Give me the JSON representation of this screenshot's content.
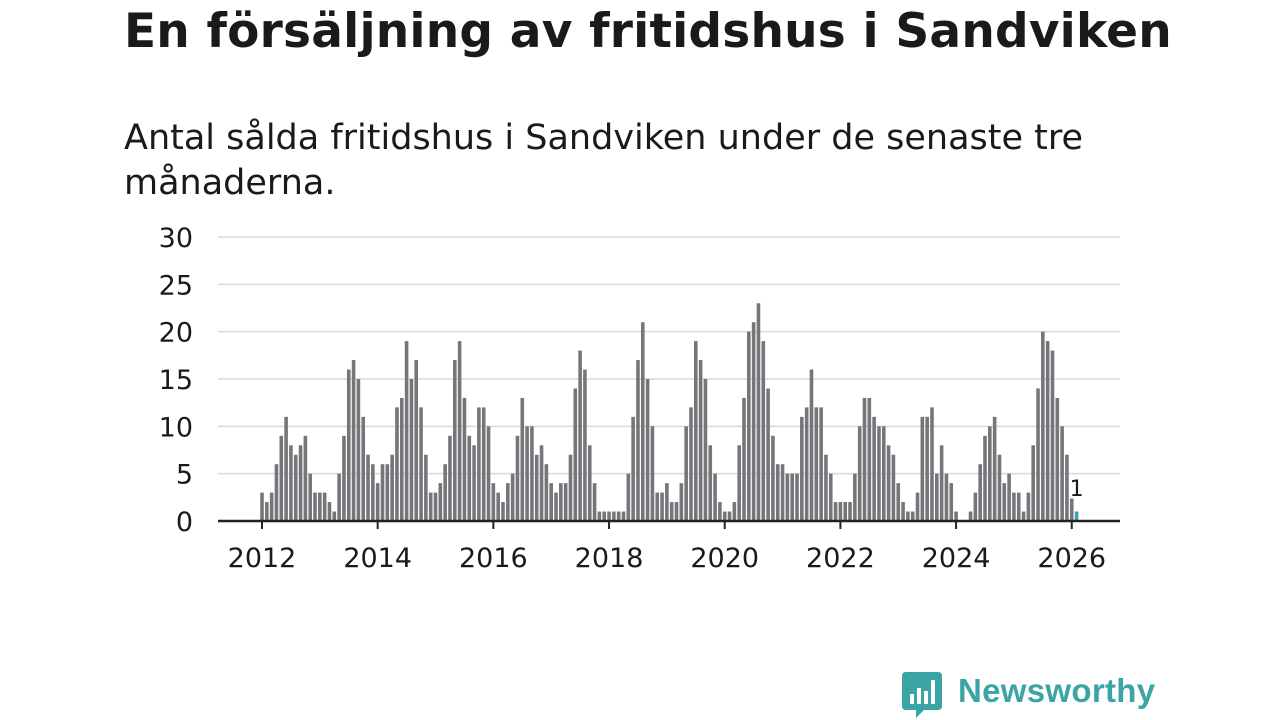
{
  "title": "En försäljning av fritidshus i Sandviken",
  "subtitle": "Antal sålda fritidshus i Sandviken under de senaste tre månaderna.",
  "brand": {
    "name": "Newsworthy",
    "icon": "newsworthy-logo-icon",
    "color": "#3aa5a4"
  },
  "colors": {
    "bar": "#76757a",
    "highlight": "#3aa5a4",
    "grid": "#d9d9d9",
    "axis": "#222222",
    "text": "#1a1a1a"
  },
  "chart_data": {
    "type": "bar",
    "x_type": "monthly",
    "start": "2012-01",
    "ylim": [
      0,
      30
    ],
    "yticks": [
      "0",
      "5",
      "10",
      "15",
      "20",
      "25",
      "30"
    ],
    "xticks": [
      "2012",
      "2014",
      "2016",
      "2018",
      "2020",
      "2022",
      "2024",
      "2026"
    ],
    "grid": true,
    "values": [
      3,
      2,
      3,
      6,
      9,
      11,
      8,
      7,
      8,
      9,
      5,
      3,
      3,
      3,
      2,
      1,
      5,
      9,
      16,
      17,
      15,
      11,
      7,
      6,
      4,
      6,
      6,
      7,
      12,
      13,
      19,
      15,
      17,
      12,
      7,
      3,
      3,
      4,
      6,
      9,
      17,
      19,
      13,
      9,
      8,
      12,
      12,
      10,
      4,
      3,
      2,
      4,
      5,
      9,
      13,
      10,
      10,
      7,
      8,
      6,
      4,
      3,
      4,
      4,
      7,
      14,
      18,
      16,
      8,
      4,
      1,
      1,
      1,
      1,
      1,
      1,
      5,
      11,
      17,
      21,
      15,
      10,
      3,
      3,
      4,
      2,
      2,
      4,
      10,
      12,
      19,
      17,
      15,
      8,
      5,
      2,
      1,
      1,
      2,
      8,
      13,
      20,
      21,
      23,
      19,
      14,
      9,
      6,
      6,
      5,
      5,
      5,
      11,
      12,
      16,
      12,
      12,
      7,
      5,
      2,
      2,
      2,
      2,
      5,
      10,
      13,
      13,
      11,
      10,
      10,
      8,
      7,
      4,
      2,
      1,
      1,
      3,
      11,
      11,
      12,
      5,
      8,
      5,
      4,
      1,
      0,
      0,
      1,
      3,
      6,
      9,
      10,
      11,
      7,
      4,
      5,
      3,
      3,
      1,
      3,
      8,
      14,
      20,
      19,
      18,
      13,
      10,
      7,
      3,
      1
    ],
    "highlight_last": true,
    "annotation": {
      "label": "1",
      "value": 1
    }
  }
}
